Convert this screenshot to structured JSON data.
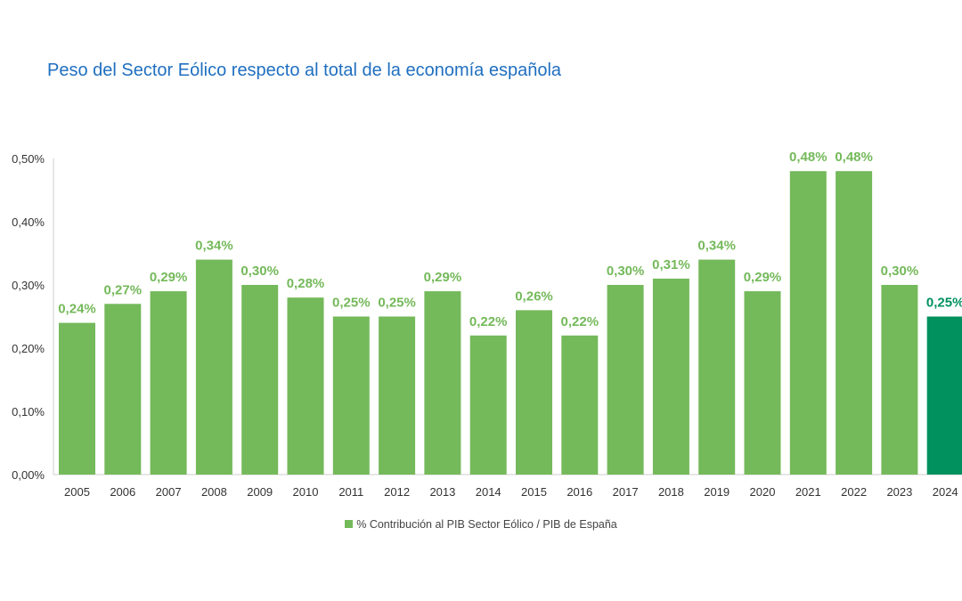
{
  "chart_data": {
    "type": "bar",
    "title": "Peso del Sector Eólico respecto al total de la economía española",
    "categories": [
      "2005",
      "2006",
      "2007",
      "2008",
      "2009",
      "2010",
      "2011",
      "2012",
      "2013",
      "2014",
      "2015",
      "2016",
      "2017",
      "2018",
      "2019",
      "2020",
      "2021",
      "2022",
      "2023",
      "2024"
    ],
    "series": [
      {
        "name": "% Contribución al PIB Sector Eólico / PIB de España",
        "values": [
          0.24,
          0.27,
          0.29,
          0.34,
          0.3,
          0.28,
          0.25,
          0.25,
          0.29,
          0.22,
          0.26,
          0.22,
          0.3,
          0.31,
          0.34,
          0.29,
          0.48,
          0.48,
          0.3,
          0.25
        ],
        "data_labels": [
          "0,24%",
          "0,27%",
          "0,29%",
          "0,34%",
          "0,30%",
          "0,28%",
          "0,25%",
          "0,25%",
          "0,29%",
          "0,22%",
          "0,26%",
          "0,22%",
          "0,30%",
          "0,31%",
          "0,34%",
          "0,29%",
          "0,48%",
          "0,48%",
          "0,30%",
          "0,25%"
        ]
      }
    ],
    "highlight_category": "2024",
    "ylim": [
      0,
      0.5
    ],
    "yticks": [
      "0,00%",
      "0,10%",
      "0,20%",
      "0,30%",
      "0,40%",
      "0,50%"
    ],
    "xlabel": "",
    "ylabel": "",
    "grid": false,
    "legend_position": "bottom",
    "colors": {
      "bar": "#74b95a",
      "highlight": "#00915f",
      "title": "#1f6fc0"
    }
  }
}
